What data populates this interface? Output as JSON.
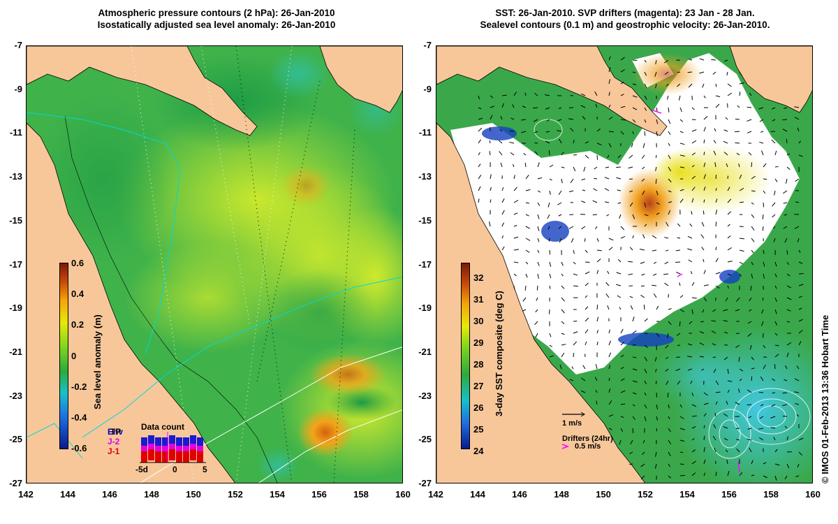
{
  "left_panel": {
    "title_line1": "Atmospheric pressure contours (2 hPa): 26-Jan-2010",
    "title_line2": "Isostatically adjusted sea level anomaly: 26-Jan-2010",
    "colorbar_label": "Sea level anomaly (m)",
    "colorbar_ticks": [
      "0.6",
      "0.4",
      "0.2",
      "0",
      "-0.2",
      "-0.4",
      "-0.6"
    ],
    "inset_title": "Data count",
    "inset_legend": [
      "Env",
      "TP",
      "J-2",
      "J-1"
    ],
    "inset_xticks": [
      "-5d",
      "0",
      "5"
    ]
  },
  "right_panel": {
    "title_line1": "SST: 26-Jan-2010. SVP drifters (magenta): 23 Jan - 28 Jan.",
    "title_line2": "Sealevel contours (0.1 m) and geostrophic velocity: 26-Jan-2010.",
    "colorbar_label": "3-day SST composite (deg C)",
    "colorbar_ticks": [
      "32",
      "31",
      "30",
      "29",
      "28",
      "27",
      "26",
      "25",
      "24"
    ],
    "velocity_scale_label": "1 m/s",
    "drifters_label": "Drifters (24hr)",
    "drifter_scale_label": "0.5 m/s"
  },
  "axes": {
    "y_ticks": [
      "-7",
      "-9",
      "-11",
      "-13",
      "-15",
      "-17",
      "-19",
      "-21",
      "-23",
      "-25",
      "-27"
    ],
    "x_ticks": [
      "142",
      "144",
      "146",
      "148",
      "150",
      "152",
      "154",
      "156",
      "158",
      "160"
    ]
  },
  "credit": "© IMOS 01-Feb-2013 13:36 Hobart Time",
  "colors": {
    "land": "#f7c79a",
    "sla_colormap": [
      "#0a1a8c",
      "#1f6fe0",
      "#18c0c8",
      "#2faa3a",
      "#7fd61e",
      "#e8e80a",
      "#f5a40a",
      "#c84a0a",
      "#7a1a05"
    ],
    "sst_colormap": [
      "#0a1a8c",
      "#1f6fe0",
      "#18c0c8",
      "#2faa3a",
      "#7fd61e",
      "#e8e80a",
      "#f5a40a",
      "#c84a0a",
      "#7a1a05"
    ],
    "drifter": "#ff00ff",
    "pressure_contour": "#00d0d0"
  }
}
